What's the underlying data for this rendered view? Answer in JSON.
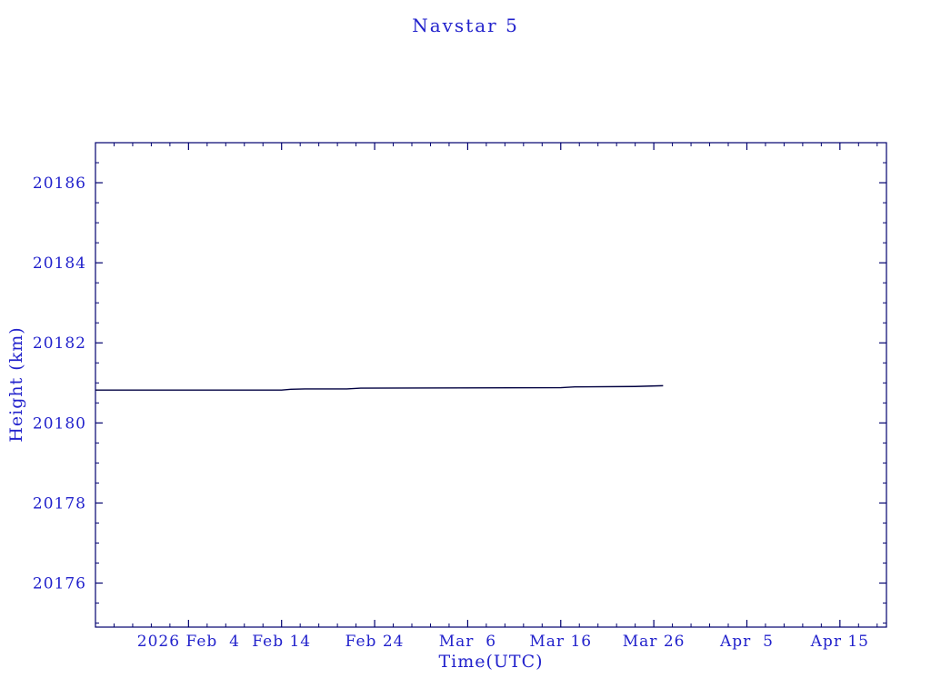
{
  "page": {
    "background": "#ffffff"
  },
  "chart_data": {
    "type": "line",
    "title": "Navstar 5",
    "xlabel": "Time(UTC)",
    "ylabel": "Height (km)",
    "grid": "off",
    "legend": "none",
    "xlim": [
      0,
      85
    ],
    "ylim": [
      20174.9,
      20187.0
    ],
    "x_minor_step": 2,
    "y_minor_step": 0.5,
    "x_ticks": [
      {
        "day": 10,
        "label": "2026 Feb  4"
      },
      {
        "day": 20,
        "label": "Feb 14"
      },
      {
        "day": 30,
        "label": "Feb 24"
      },
      {
        "day": 40,
        "label": "Mar  6"
      },
      {
        "day": 50,
        "label": "Mar 16"
      },
      {
        "day": 60,
        "label": "Mar 26"
      },
      {
        "day": 70,
        "label": "Apr  5"
      },
      {
        "day": 80,
        "label": "Apr 15"
      }
    ],
    "y_ticks": [
      20176,
      20178,
      20180,
      20182,
      20184,
      20186
    ],
    "series": [
      {
        "name": "Navstar 5 height",
        "x_days": [
          0,
          20,
          21,
          22.5,
          27,
          28.5,
          50,
          51.5,
          58,
          61
        ],
        "values": [
          20180.82,
          20180.82,
          20180.84,
          20180.85,
          20180.85,
          20180.87,
          20180.88,
          20180.9,
          20180.91,
          20180.93
        ]
      }
    ],
    "colors": {
      "background": "#ffffff",
      "text": "#2222cc",
      "axis": "#00006e",
      "line": "#000040"
    }
  }
}
